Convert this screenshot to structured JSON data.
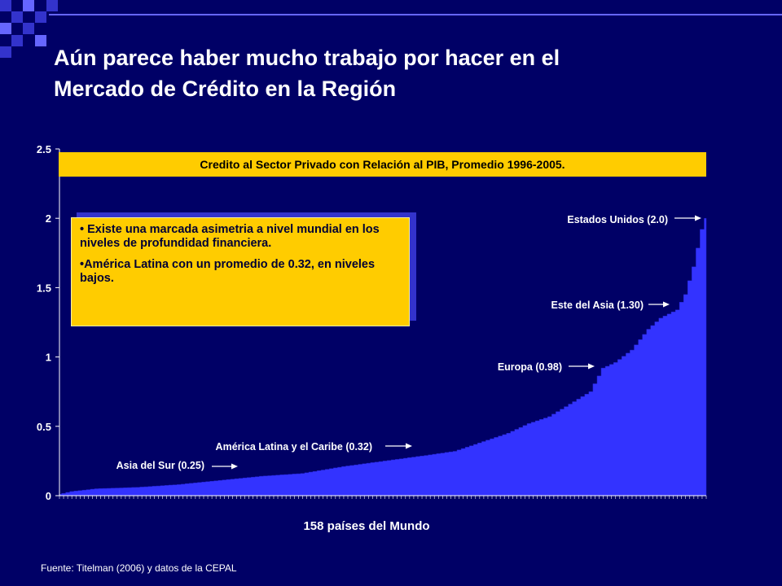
{
  "title_line1": "Aún parece haber mucho trabajo por hacer en el",
  "title_line2": "Mercado de Crédito en la Región",
  "banner": "Credito al Sector Privado con Relación al PIB, Promedio 1996-2005.",
  "bullets": [
    "• Existe una marcada asimetria a nivel mundial en los niveles de profundidad financiera.",
    "•América Latina con un promedio de 0.32, en niveles bajos."
  ],
  "source": "Fuente: Titelman (2006) y datos de la CEPAL",
  "colors": {
    "background": "#000066",
    "area": "#3333ff",
    "highlight": "#ffcc00",
    "text": "#ffffff"
  },
  "chart_data": {
    "type": "area",
    "title": "Credito al Sector Privado con Relación al PIB, Promedio 1996-2005.",
    "xlabel": "158 países del Mundo",
    "ylabel": "",
    "n_points": 158,
    "ylim": [
      0,
      2.5
    ],
    "yticks": [
      0,
      0.5,
      1,
      1.5,
      2,
      2.5
    ],
    "ytick_labels": [
      "0",
      "0.5",
      "1",
      "1.5",
      "2",
      "2.5"
    ],
    "curve_anchors": [
      {
        "x": 1,
        "y": 0.01
      },
      {
        "x": 4,
        "y": 0.03
      },
      {
        "x": 10,
        "y": 0.05
      },
      {
        "x": 20,
        "y": 0.06
      },
      {
        "x": 30,
        "y": 0.08
      },
      {
        "x": 40,
        "y": 0.11
      },
      {
        "x": 50,
        "y": 0.14
      },
      {
        "x": 60,
        "y": 0.16
      },
      {
        "x": 70,
        "y": 0.21
      },
      {
        "x": 80,
        "y": 0.25
      },
      {
        "x": 90,
        "y": 0.29
      },
      {
        "x": 97,
        "y": 0.32
      },
      {
        "x": 105,
        "y": 0.4
      },
      {
        "x": 110,
        "y": 0.45
      },
      {
        "x": 115,
        "y": 0.52
      },
      {
        "x": 120,
        "y": 0.57
      },
      {
        "x": 125,
        "y": 0.66
      },
      {
        "x": 130,
        "y": 0.75
      },
      {
        "x": 133,
        "y": 0.92
      },
      {
        "x": 136,
        "y": 0.96
      },
      {
        "x": 140,
        "y": 1.05
      },
      {
        "x": 144,
        "y": 1.2
      },
      {
        "x": 147,
        "y": 1.28
      },
      {
        "x": 151,
        "y": 1.34
      },
      {
        "x": 153,
        "y": 1.45
      },
      {
        "x": 155,
        "y": 1.65
      },
      {
        "x": 157,
        "y": 1.92
      },
      {
        "x": 158,
        "y": 2.0
      }
    ],
    "annotations": [
      {
        "label": "Estados Unidos (2.0)",
        "x": 158,
        "y": 2.0
      },
      {
        "label": "Este del Asia (1.30)",
        "x": 147,
        "y": 1.3
      },
      {
        "label": "Europa (0.98)",
        "x": 130,
        "y": 0.98
      },
      {
        "label": "América Latina y el Caribe (0.32)",
        "x": 91,
        "y": 0.35
      },
      {
        "label": "Asia del Sur (0.25)",
        "x": 43,
        "y": 0.22
      }
    ]
  }
}
